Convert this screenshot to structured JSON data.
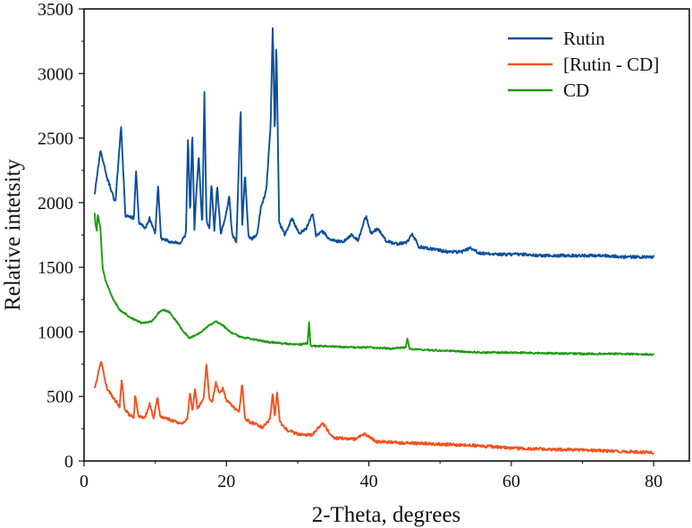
{
  "chart_data": {
    "type": "line",
    "title": "",
    "xlabel": "2-Theta, degrees",
    "ylabel": "Relative intetsity",
    "xlim": [
      0,
      85
    ],
    "ylim": [
      0,
      3500
    ],
    "xticks": [
      0,
      20,
      40,
      60,
      80
    ],
    "yticks": [
      0,
      500,
      1000,
      1500,
      2000,
      2500,
      3000,
      3500
    ],
    "grid": false,
    "legend": "top-right",
    "series": [
      {
        "name": "Rutin",
        "color": "#0b4f9c",
        "x": [
          1.5,
          2.3,
          3.2,
          4.4,
          5.2,
          5.8,
          7.0,
          7.3,
          7.7,
          8.6,
          9.2,
          10.0,
          10.4,
          10.8,
          12.0,
          13.5,
          14.3,
          14.6,
          14.9,
          15.2,
          15.5,
          15.7,
          16.1,
          16.6,
          16.9,
          17.2,
          17.6,
          17.9,
          18.3,
          18.7,
          19.2,
          19.8,
          20.4,
          20.8,
          21.4,
          22.0,
          22.2,
          22.6,
          23.1,
          23.6,
          24.3,
          24.8,
          25.6,
          26.2,
          26.5,
          26.8,
          27.0,
          27.4,
          28.2,
          29.2,
          30.2,
          31.2,
          32.1,
          32.6,
          33.4,
          34.5,
          35.5,
          36.5,
          37.5,
          38.5,
          39.6,
          40.3,
          41.3,
          42.5,
          44.0,
          45.3,
          46.1,
          47.0,
          49.0,
          51.0,
          53.0,
          54.3,
          55.5,
          58.0,
          61.0,
          64.0,
          67.0,
          70.0,
          73.0,
          76.0,
          80.0
        ],
        "values": [
          2070,
          2400,
          2200,
          2000,
          2600,
          1900,
          1880,
          2250,
          1850,
          1800,
          1880,
          1760,
          2140,
          1720,
          1700,
          1690,
          1750,
          2500,
          1900,
          2560,
          1800,
          2000,
          2370,
          1800,
          2850,
          1850,
          1800,
          2150,
          1780,
          2130,
          1760,
          1880,
          2050,
          1750,
          1700,
          2750,
          1800,
          2230,
          1740,
          1720,
          1750,
          1950,
          2100,
          2600,
          3380,
          2500,
          3270,
          1850,
          1750,
          1880,
          1760,
          1800,
          1920,
          1740,
          1780,
          1720,
          1700,
          1700,
          1750,
          1710,
          1900,
          1760,
          1800,
          1700,
          1680,
          1690,
          1760,
          1660,
          1640,
          1620,
          1620,
          1650,
          1610,
          1600,
          1600,
          1590,
          1590,
          1590,
          1590,
          1580,
          1580
        ]
      },
      {
        "name": "[Rutin - CD]",
        "color": "#f4511e",
        "x": [
          1.5,
          2.0,
          2.4,
          3.2,
          4.5,
          5.0,
          5.3,
          5.7,
          6.5,
          7.0,
          7.2,
          7.6,
          8.5,
          9.2,
          9.8,
          10.3,
          10.7,
          11.5,
          12.5,
          13.5,
          14.0,
          14.5,
          14.9,
          15.2,
          15.6,
          15.9,
          16.3,
          16.8,
          17.2,
          17.6,
          18.0,
          18.5,
          19.0,
          19.5,
          20.0,
          20.5,
          21.2,
          21.8,
          22.2,
          22.6,
          23.3,
          24.0,
          25.0,
          26.1,
          26.5,
          26.8,
          27.1,
          27.5,
          28.5,
          30.0,
          32.0,
          33.5,
          35.0,
          38.0,
          39.5,
          41.0,
          45.0,
          50.0,
          55.0,
          60.0,
          65.0,
          70.0,
          75.0,
          80.0
        ],
        "values": [
          560,
          680,
          780,
          560,
          460,
          420,
          640,
          400,
          350,
          340,
          520,
          350,
          330,
          440,
          330,
          500,
          340,
          330,
          310,
          290,
          300,
          330,
          530,
          380,
          570,
          400,
          440,
          490,
          760,
          480,
          450,
          610,
          520,
          560,
          470,
          450,
          400,
          390,
          600,
          330,
          300,
          290,
          260,
          320,
          520,
          340,
          540,
          300,
          240,
          210,
          200,
          290,
          180,
          170,
          210,
          150,
          140,
          130,
          120,
          100,
          90,
          85,
          75,
          65
        ]
      },
      {
        "name": "CD",
        "color": "#1e9a10",
        "x": [
          1.5,
          1.6,
          1.8,
          1.9,
          2.1,
          2.3,
          2.6,
          3.0,
          4.0,
          5.0,
          6.5,
          8.0,
          9.5,
          10.5,
          11.3,
          12.0,
          13.0,
          14.0,
          14.8,
          15.5,
          16.5,
          17.5,
          18.5,
          19.5,
          20.5,
          22.0,
          24.0,
          26.0,
          28.0,
          30.0,
          31.4,
          31.6,
          31.8,
          32.0,
          34.0,
          37.0,
          40.0,
          43.0,
          45.2,
          45.4,
          45.7,
          48.0,
          52.0,
          56.0,
          60.0,
          65.0,
          70.0,
          75.0,
          80.0
        ],
        "values": [
          1920,
          1830,
          1780,
          1910,
          1860,
          1800,
          1500,
          1400,
          1260,
          1170,
          1110,
          1070,
          1080,
          1150,
          1170,
          1150,
          1080,
          1000,
          950,
          970,
          1000,
          1050,
          1080,
          1050,
          1000,
          960,
          940,
          920,
          910,
          900,
          910,
          1080,
          900,
          890,
          890,
          880,
          880,
          870,
          880,
          950,
          870,
          860,
          850,
          840,
          840,
          835,
          830,
          830,
          825
        ]
      }
    ]
  }
}
